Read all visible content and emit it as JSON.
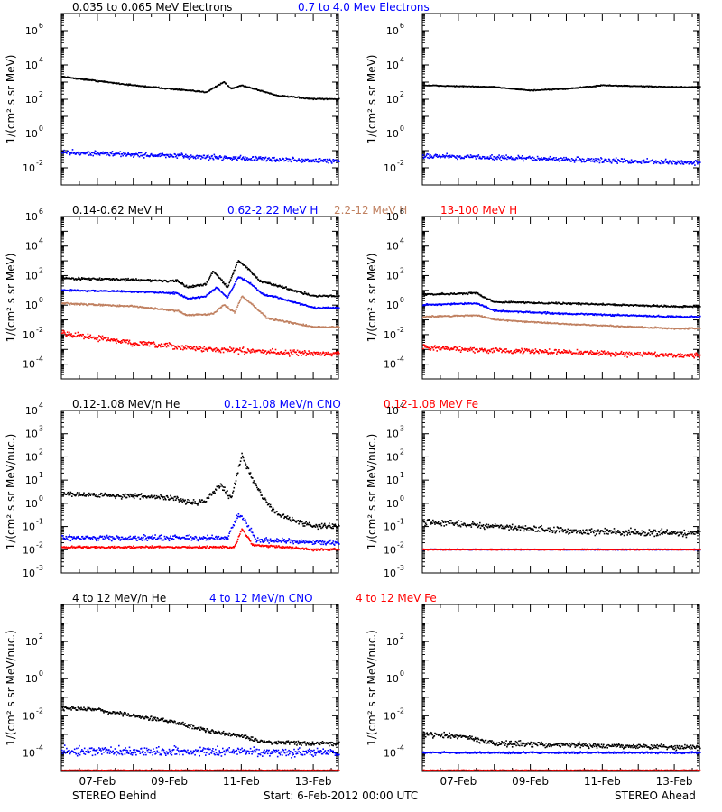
{
  "footer": {
    "left": "STEREO Behind",
    "center": "Start:  6-Feb-2012 00:00 UTC",
    "right": "STEREO Ahead"
  },
  "x_ticks": [
    "07-Feb",
    "09-Feb",
    "11-Feb",
    "13-Feb"
  ],
  "colors": {
    "black": "#000000",
    "blue": "#0000ff",
    "tan": "#c08060",
    "red": "#ff0000"
  },
  "chart_data": [
    {
      "type": "scatter",
      "row": 0,
      "log_y": true,
      "ylabel": "1/(cm² s sr MeV)",
      "ylim_exp": [
        -3,
        7
      ],
      "ytick_exps": [
        -2,
        0,
        2,
        4,
        6
      ],
      "x_range_days": [
        "06-Feb-2012 00:00",
        "13-Feb-2012 00:00"
      ],
      "legend": [
        {
          "text": "0.035 to 0.065 MeV Electrons",
          "color": "#000000"
        },
        {
          "text": "0.7 to 4.0 Mev Electrons",
          "color": "#0000ff"
        }
      ],
      "panels": [
        {
          "name": "STEREO Behind",
          "series": [
            {
              "name": "0.035 to 0.065 MeV Electrons",
              "color": "#000000",
              "x_day": [
                0,
                2,
                4,
                4.5,
                4.7,
                5,
                6,
                7
              ],
              "log10_y": [
                3.3,
                2.8,
                2.4,
                3.0,
                2.6,
                2.8,
                2.2,
                2.0
              ],
              "scatter": 0.04
            },
            {
              "name": "0.7 to 4.0 Mev Electrons",
              "color": "#0000ff",
              "x_day": [
                0,
                7
              ],
              "log10_y": [
                -1.1,
                -1.6
              ],
              "scatter": 0.15
            }
          ]
        },
        {
          "name": "STEREO Ahead",
          "series": [
            {
              "name": "0.035 to 0.065 MeV Electrons",
              "color": "#000000",
              "x_day": [
                0,
                2,
                3,
                4,
                5,
                7
              ],
              "log10_y": [
                2.8,
                2.7,
                2.5,
                2.6,
                2.8,
                2.7
              ],
              "scatter": 0.03
            },
            {
              "name": "0.7 to 4.0 Mev Electrons",
              "color": "#0000ff",
              "x_day": [
                0,
                7
              ],
              "log10_y": [
                -1.3,
                -1.7
              ],
              "scatter": 0.15
            }
          ]
        }
      ]
    },
    {
      "type": "scatter",
      "row": 1,
      "log_y": true,
      "ylabel": "1/(cm² s sr MeV)",
      "ylim_exp": [
        -5,
        6
      ],
      "ytick_exps": [
        -4,
        -2,
        0,
        2,
        4,
        6
      ],
      "x_range_days": [
        "06-Feb-2012 00:00",
        "13-Feb-2012 00:00"
      ],
      "legend": [
        {
          "text": "0.14-0.62 MeV H",
          "color": "#000000"
        },
        {
          "text": "0.62-2.22 MeV H",
          "color": "#0000ff"
        },
        {
          "text": "2.2-12 MeV H",
          "color": "#c08060"
        },
        {
          "text": "13-100 MeV H",
          "color": "#ff0000"
        }
      ],
      "panels": [
        {
          "name": "STEREO Behind",
          "series": [
            {
              "name": "0.14-0.62 MeV H",
              "color": "#000000",
              "x_day": [
                0,
                2,
                3.2,
                3.5,
                4.0,
                4.2,
                4.6,
                4.9,
                5.2,
                5.5,
                6.0,
                7
              ],
              "log10_y": [
                1.8,
                1.7,
                1.6,
                1.2,
                1.4,
                2.3,
                1.2,
                3.0,
                2.4,
                1.6,
                1.3,
                0.6
              ],
              "scatter": 0.08
            },
            {
              "name": "0.62-2.22 MeV H",
              "color": "#0000ff",
              "x_day": [
                0,
                2,
                3.2,
                3.5,
                4.0,
                4.3,
                4.6,
                4.9,
                5.2,
                5.6,
                6.0,
                7
              ],
              "log10_y": [
                1.0,
                0.9,
                0.8,
                0.4,
                0.6,
                1.2,
                0.5,
                1.9,
                1.5,
                0.7,
                0.5,
                -0.2
              ],
              "scatter": 0.06
            },
            {
              "name": "2.2-12 MeV H",
              "color": "#c08060",
              "x_day": [
                0,
                2,
                3.2,
                3.5,
                4.2,
                4.5,
                4.8,
                5.0,
                5.3,
                5.7,
                7
              ],
              "log10_y": [
                0.1,
                -0.1,
                -0.4,
                -0.7,
                -0.6,
                0.0,
                -0.5,
                0.6,
                0.0,
                -0.9,
                -1.5
              ],
              "scatter": 0.06
            },
            {
              "name": "13-100 MeV H",
              "color": "#ff0000",
              "x_day": [
                0,
                2,
                4,
                7
              ],
              "log10_y": [
                -1.9,
                -2.6,
                -3.0,
                -3.3
              ],
              "scatter": 0.2
            }
          ]
        },
        {
          "name": "STEREO Ahead",
          "series": [
            {
              "name": "0.14-0.62 MeV H",
              "color": "#000000",
              "x_day": [
                0,
                1.5,
                1.8,
                2,
                4,
                7
              ],
              "log10_y": [
                0.7,
                0.8,
                0.4,
                0.2,
                0.1,
                -0.1
              ],
              "scatter": 0.06
            },
            {
              "name": "0.62-2.22 MeV H",
              "color": "#0000ff",
              "x_day": [
                0,
                1.5,
                2,
                4,
                7
              ],
              "log10_y": [
                0.0,
                0.1,
                -0.4,
                -0.6,
                -0.8
              ],
              "scatter": 0.06
            },
            {
              "name": "2.2-12 MeV H",
              "color": "#c08060",
              "x_day": [
                0,
                1.5,
                2,
                4,
                7
              ],
              "log10_y": [
                -0.8,
                -0.7,
                -1.0,
                -1.3,
                -1.6
              ],
              "scatter": 0.05
            },
            {
              "name": "13-100 MeV H",
              "color": "#ff0000",
              "x_day": [
                0,
                2,
                4,
                7
              ],
              "log10_y": [
                -2.9,
                -3.1,
                -3.2,
                -3.4
              ],
              "scatter": 0.18
            }
          ]
        }
      ]
    },
    {
      "type": "scatter",
      "row": 2,
      "log_y": true,
      "ylabel": "1/(cm² s sr MeV/nuc.)",
      "ylim_exp": [
        -3,
        4
      ],
      "ytick_exps": [
        -3,
        -2,
        -1,
        0,
        1,
        2,
        3,
        4
      ],
      "x_range_days": [
        "06-Feb-2012 00:00",
        "13-Feb-2012 00:00"
      ],
      "legend": [
        {
          "text": "0.12-1.08 MeV/n He",
          "color": "#000000"
        },
        {
          "text": "0.12-1.08 MeV/n CNO",
          "color": "#0000ff"
        },
        {
          "text": "0.12-1.08 MeV Fe",
          "color": "#ff0000"
        }
      ],
      "panels": [
        {
          "name": "STEREO Behind",
          "series": [
            {
              "name": "0.12-1.08 MeV/n He",
              "color": "#000000",
              "x_day": [
                0,
                2,
                3.2,
                3.6,
                4.0,
                4.4,
                4.7,
                5.0,
                5.3,
                5.7,
                6.0,
                7
              ],
              "log10_y": [
                0.4,
                0.3,
                0.2,
                0.0,
                0.1,
                0.8,
                0.2,
                2.1,
                1.0,
                0.0,
                -0.5,
                -1.0
              ],
              "scatter": 0.12
            },
            {
              "name": "0.12-1.08 MeV/n CNO",
              "color": "#0000ff",
              "x_day": [
                0,
                4.6,
                4.9,
                5.1,
                5.4,
                7
              ],
              "log10_y": [
                -1.5,
                -1.5,
                -0.5,
                -0.8,
                -1.6,
                -1.7
              ],
              "scatter": 0.12
            },
            {
              "name": "0.12-1.08 MeV Fe",
              "color": "#ff0000",
              "x_day": [
                0,
                4.8,
                5.0,
                5.3,
                7
              ],
              "log10_y": [
                -1.9,
                -1.9,
                -1.1,
                -1.8,
                -2.0
              ],
              "scatter": 0.05
            }
          ]
        },
        {
          "name": "STEREO Ahead",
          "series": [
            {
              "name": "0.12-1.08 MeV/n He",
              "color": "#000000",
              "x_day": [
                0,
                2,
                4,
                7
              ],
              "log10_y": [
                -0.8,
                -1.0,
                -1.2,
                -1.3
              ],
              "scatter": 0.15
            },
            {
              "name": "0.12-1.08 MeV/n CNO",
              "color": "#0000ff",
              "x_day": [
                0,
                7
              ],
              "log10_y": [
                -2.0,
                -2.0
              ],
              "scatter": 0.02
            },
            {
              "name": "0.12-1.08 MeV Fe",
              "color": "#ff0000",
              "x_day": [
                0,
                7
              ],
              "log10_y": [
                -2.0,
                -2.0
              ],
              "scatter": 0.02
            }
          ]
        }
      ]
    },
    {
      "type": "scatter",
      "row": 3,
      "log_y": true,
      "ylabel": "1/(cm² s sr MeV/nuc.)",
      "ylim_exp": [
        -5,
        4
      ],
      "ytick_exps": [
        -4,
        -2,
        0,
        2
      ],
      "x_range_days": [
        "06-Feb-2012 00:00",
        "13-Feb-2012 00:00"
      ],
      "legend": [
        {
          "text": "4 to 12 MeV/n He",
          "color": "#000000"
        },
        {
          "text": "4 to 12 MeV/n CNO",
          "color": "#0000ff"
        },
        {
          "text": "4 to 12 MeV Fe",
          "color": "#ff0000"
        }
      ],
      "panels": [
        {
          "name": "STEREO Behind",
          "series": [
            {
              "name": "4 to 12 MeV/n He",
              "color": "#000000",
              "x_day": [
                0,
                1,
                2,
                3,
                4,
                5,
                5.5,
                7
              ],
              "log10_y": [
                -1.6,
                -1.7,
                -2.0,
                -2.3,
                -2.8,
                -3.1,
                -3.4,
                -3.5
              ],
              "scatter": 0.12
            },
            {
              "name": "4 to 12 MeV/n CNO",
              "color": "#0000ff",
              "x_day": [
                0,
                7
              ],
              "log10_y": [
                -3.9,
                -4.0
              ],
              "scatter": 0.25
            },
            {
              "name": "4 to 12 MeV Fe",
              "color": "#ff0000",
              "x_day": [
                0,
                7
              ],
              "log10_y": [
                -4.95,
                -4.95
              ],
              "scatter": 0.02
            }
          ]
        },
        {
          "name": "STEREO Ahead",
          "series": [
            {
              "name": "4 to 12 MeV/n He",
              "color": "#000000",
              "x_day": [
                0,
                1,
                2,
                7
              ],
              "log10_y": [
                -3.0,
                -3.1,
                -3.5,
                -3.7
              ],
              "scatter": 0.15
            },
            {
              "name": "4 to 12 MeV/n CNO",
              "color": "#0000ff",
              "x_day": [
                0,
                7
              ],
              "log10_y": [
                -4.0,
                -4.0
              ],
              "scatter": 0.05
            },
            {
              "name": "4 to 12 MeV Fe",
              "color": "#ff0000",
              "x_day": [
                0,
                7
              ],
              "log10_y": [
                -4.95,
                -4.95
              ],
              "scatter": 0.02
            }
          ]
        }
      ]
    }
  ]
}
